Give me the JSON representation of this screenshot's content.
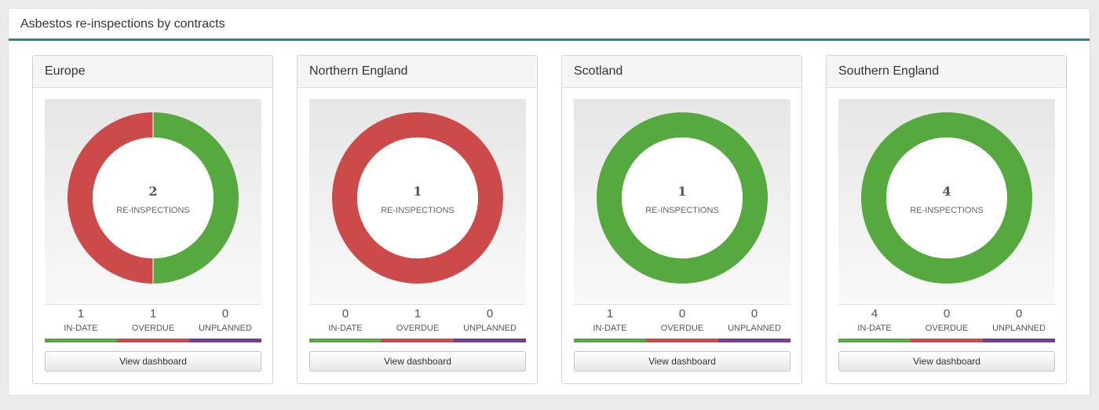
{
  "panel": {
    "title": "Asbestos re-inspections by contracts"
  },
  "colors": {
    "in_date": "#55a93f",
    "overdue": "#cc4a4a",
    "unplanned": "#7a3b97",
    "accent": "#1f8a86"
  },
  "contracts": [
    {
      "name": "Europe",
      "total": "2",
      "total_label": "RE-INSPECTIONS",
      "stats": [
        {
          "value": "1",
          "label": "IN-DATE"
        },
        {
          "value": "1",
          "label": "OVERDUE"
        },
        {
          "value": "0",
          "label": "UNPLANNED"
        }
      ],
      "button_label": "View dashboard"
    },
    {
      "name": "Northern England",
      "total": "1",
      "total_label": "RE-INSPECTIONS",
      "stats": [
        {
          "value": "0",
          "label": "IN-DATE"
        },
        {
          "value": "1",
          "label": "OVERDUE"
        },
        {
          "value": "0",
          "label": "UNPLANNED"
        }
      ],
      "button_label": "View dashboard"
    },
    {
      "name": "Scotland",
      "total": "1",
      "total_label": "RE-INSPECTIONS",
      "stats": [
        {
          "value": "1",
          "label": "IN-DATE"
        },
        {
          "value": "0",
          "label": "OVERDUE"
        },
        {
          "value": "0",
          "label": "UNPLANNED"
        }
      ],
      "button_label": "View dashboard"
    },
    {
      "name": "Southern England",
      "total": "4",
      "total_label": "RE-INSPECTIONS",
      "stats": [
        {
          "value": "4",
          "label": "IN-DATE"
        },
        {
          "value": "0",
          "label": "OVERDUE"
        },
        {
          "value": "0",
          "label": "UNPLANNED"
        }
      ],
      "button_label": "View dashboard"
    }
  ]
}
